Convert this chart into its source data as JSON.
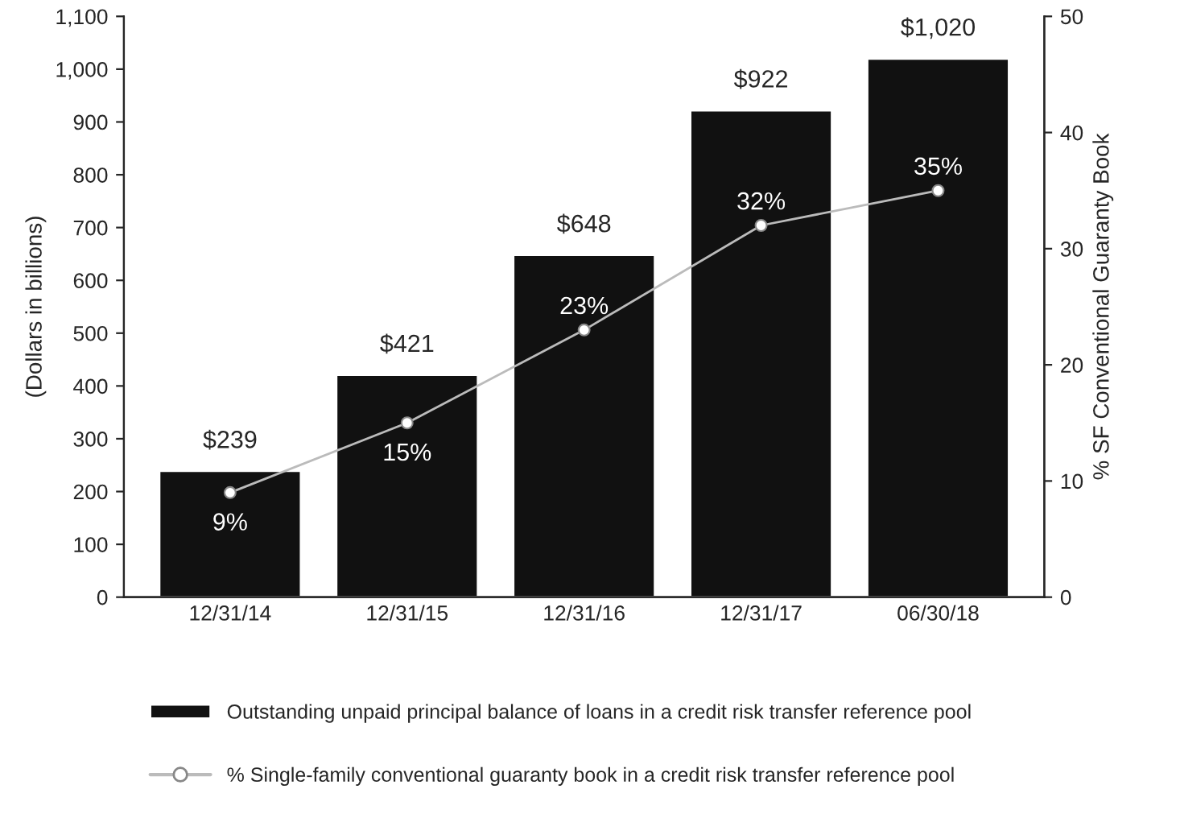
{
  "chart_data": {
    "type": "bar",
    "categories": [
      "12/31/14",
      "12/31/15",
      "12/31/16",
      "12/31/17",
      "06/30/18"
    ],
    "series": [
      {
        "name": "Outstanding unpaid principal balance of loans in a credit risk transfer reference pool",
        "color": "#111111",
        "values": [
          239,
          421,
          648,
          922,
          1020
        ],
        "value_labels": [
          "$239",
          "$421",
          "$648",
          "$922",
          "$1,020"
        ]
      },
      {
        "name": "% Single-family conventional guaranty book in a credit risk transfer reference pool",
        "type": "line",
        "axis": "y2",
        "color": "#bbbbbb",
        "values": [
          9,
          15,
          23,
          32,
          35
        ],
        "value_labels": [
          "9%",
          "15%",
          "23%",
          "32%",
          "35%"
        ]
      }
    ],
    "ylabel": "(Dollars in billions)",
    "y2label": "% SF Conventional Guaranty Book",
    "ylim": [
      0,
      1100
    ],
    "yticks": [
      0,
      100,
      200,
      300,
      400,
      500,
      600,
      700,
      800,
      900,
      {
        "value": 1000,
        "label": "1,000"
      },
      {
        "value": 1100,
        "label": "1,100"
      }
    ],
    "y2lim": [
      0,
      50
    ],
    "y2ticks": [
      0,
      10,
      20,
      30,
      40,
      50
    ],
    "marker": "circle",
    "line_style": "solid",
    "grid": false,
    "legend": "bottom"
  }
}
